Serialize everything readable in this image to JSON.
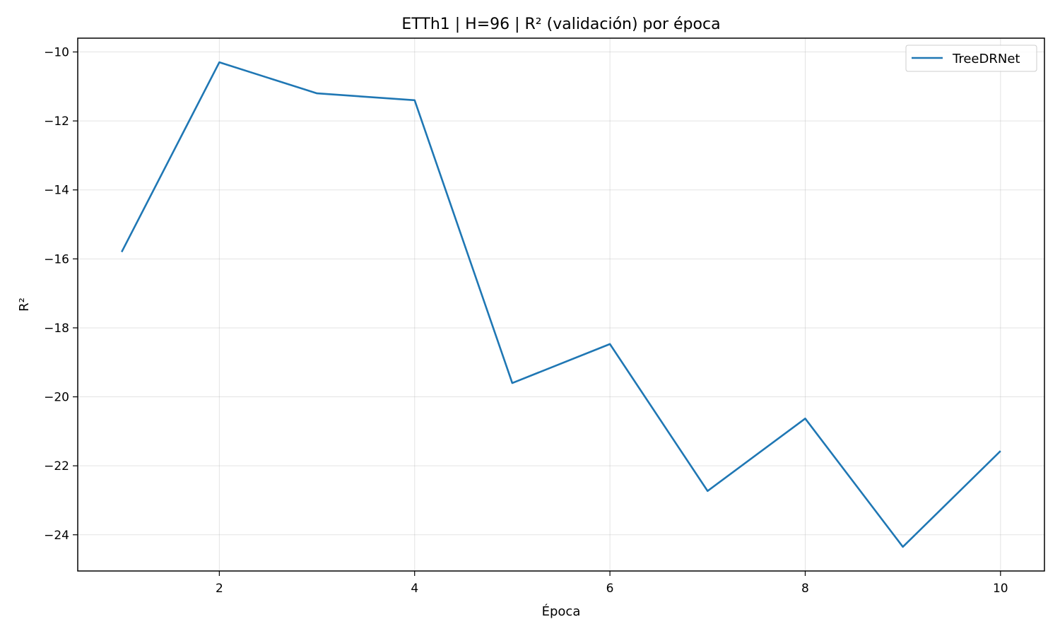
{
  "chart_data": {
    "type": "line",
    "title": "ETTh1 | H=96 | R² (validación) por época",
    "xlabel": "Época",
    "ylabel": "R²",
    "xlim": [
      0.55,
      10.45
    ],
    "ylim": [
      -25.05,
      -9.6
    ],
    "xticks": [
      2,
      4,
      6,
      8,
      10
    ],
    "yticks": [
      -10,
      -12,
      -14,
      -16,
      -18,
      -20,
      -22,
      -24
    ],
    "xtick_labels": [
      "2",
      "4",
      "6",
      "8",
      "10"
    ],
    "ytick_labels": [
      "−10",
      "−12",
      "−14",
      "−16",
      "−18",
      "−20",
      "−22",
      "−24"
    ],
    "grid": true,
    "legend_position": "top-right",
    "series": [
      {
        "name": "TreeDRNet",
        "color": "#1f77b4",
        "x": [
          1,
          2,
          3,
          4,
          5,
          6,
          7,
          8,
          9,
          10
        ],
        "y": [
          -15.8,
          -10.3,
          -11.2,
          -11.4,
          -19.6,
          -18.47,
          -22.73,
          -20.63,
          -24.35,
          -21.57
        ]
      }
    ]
  }
}
